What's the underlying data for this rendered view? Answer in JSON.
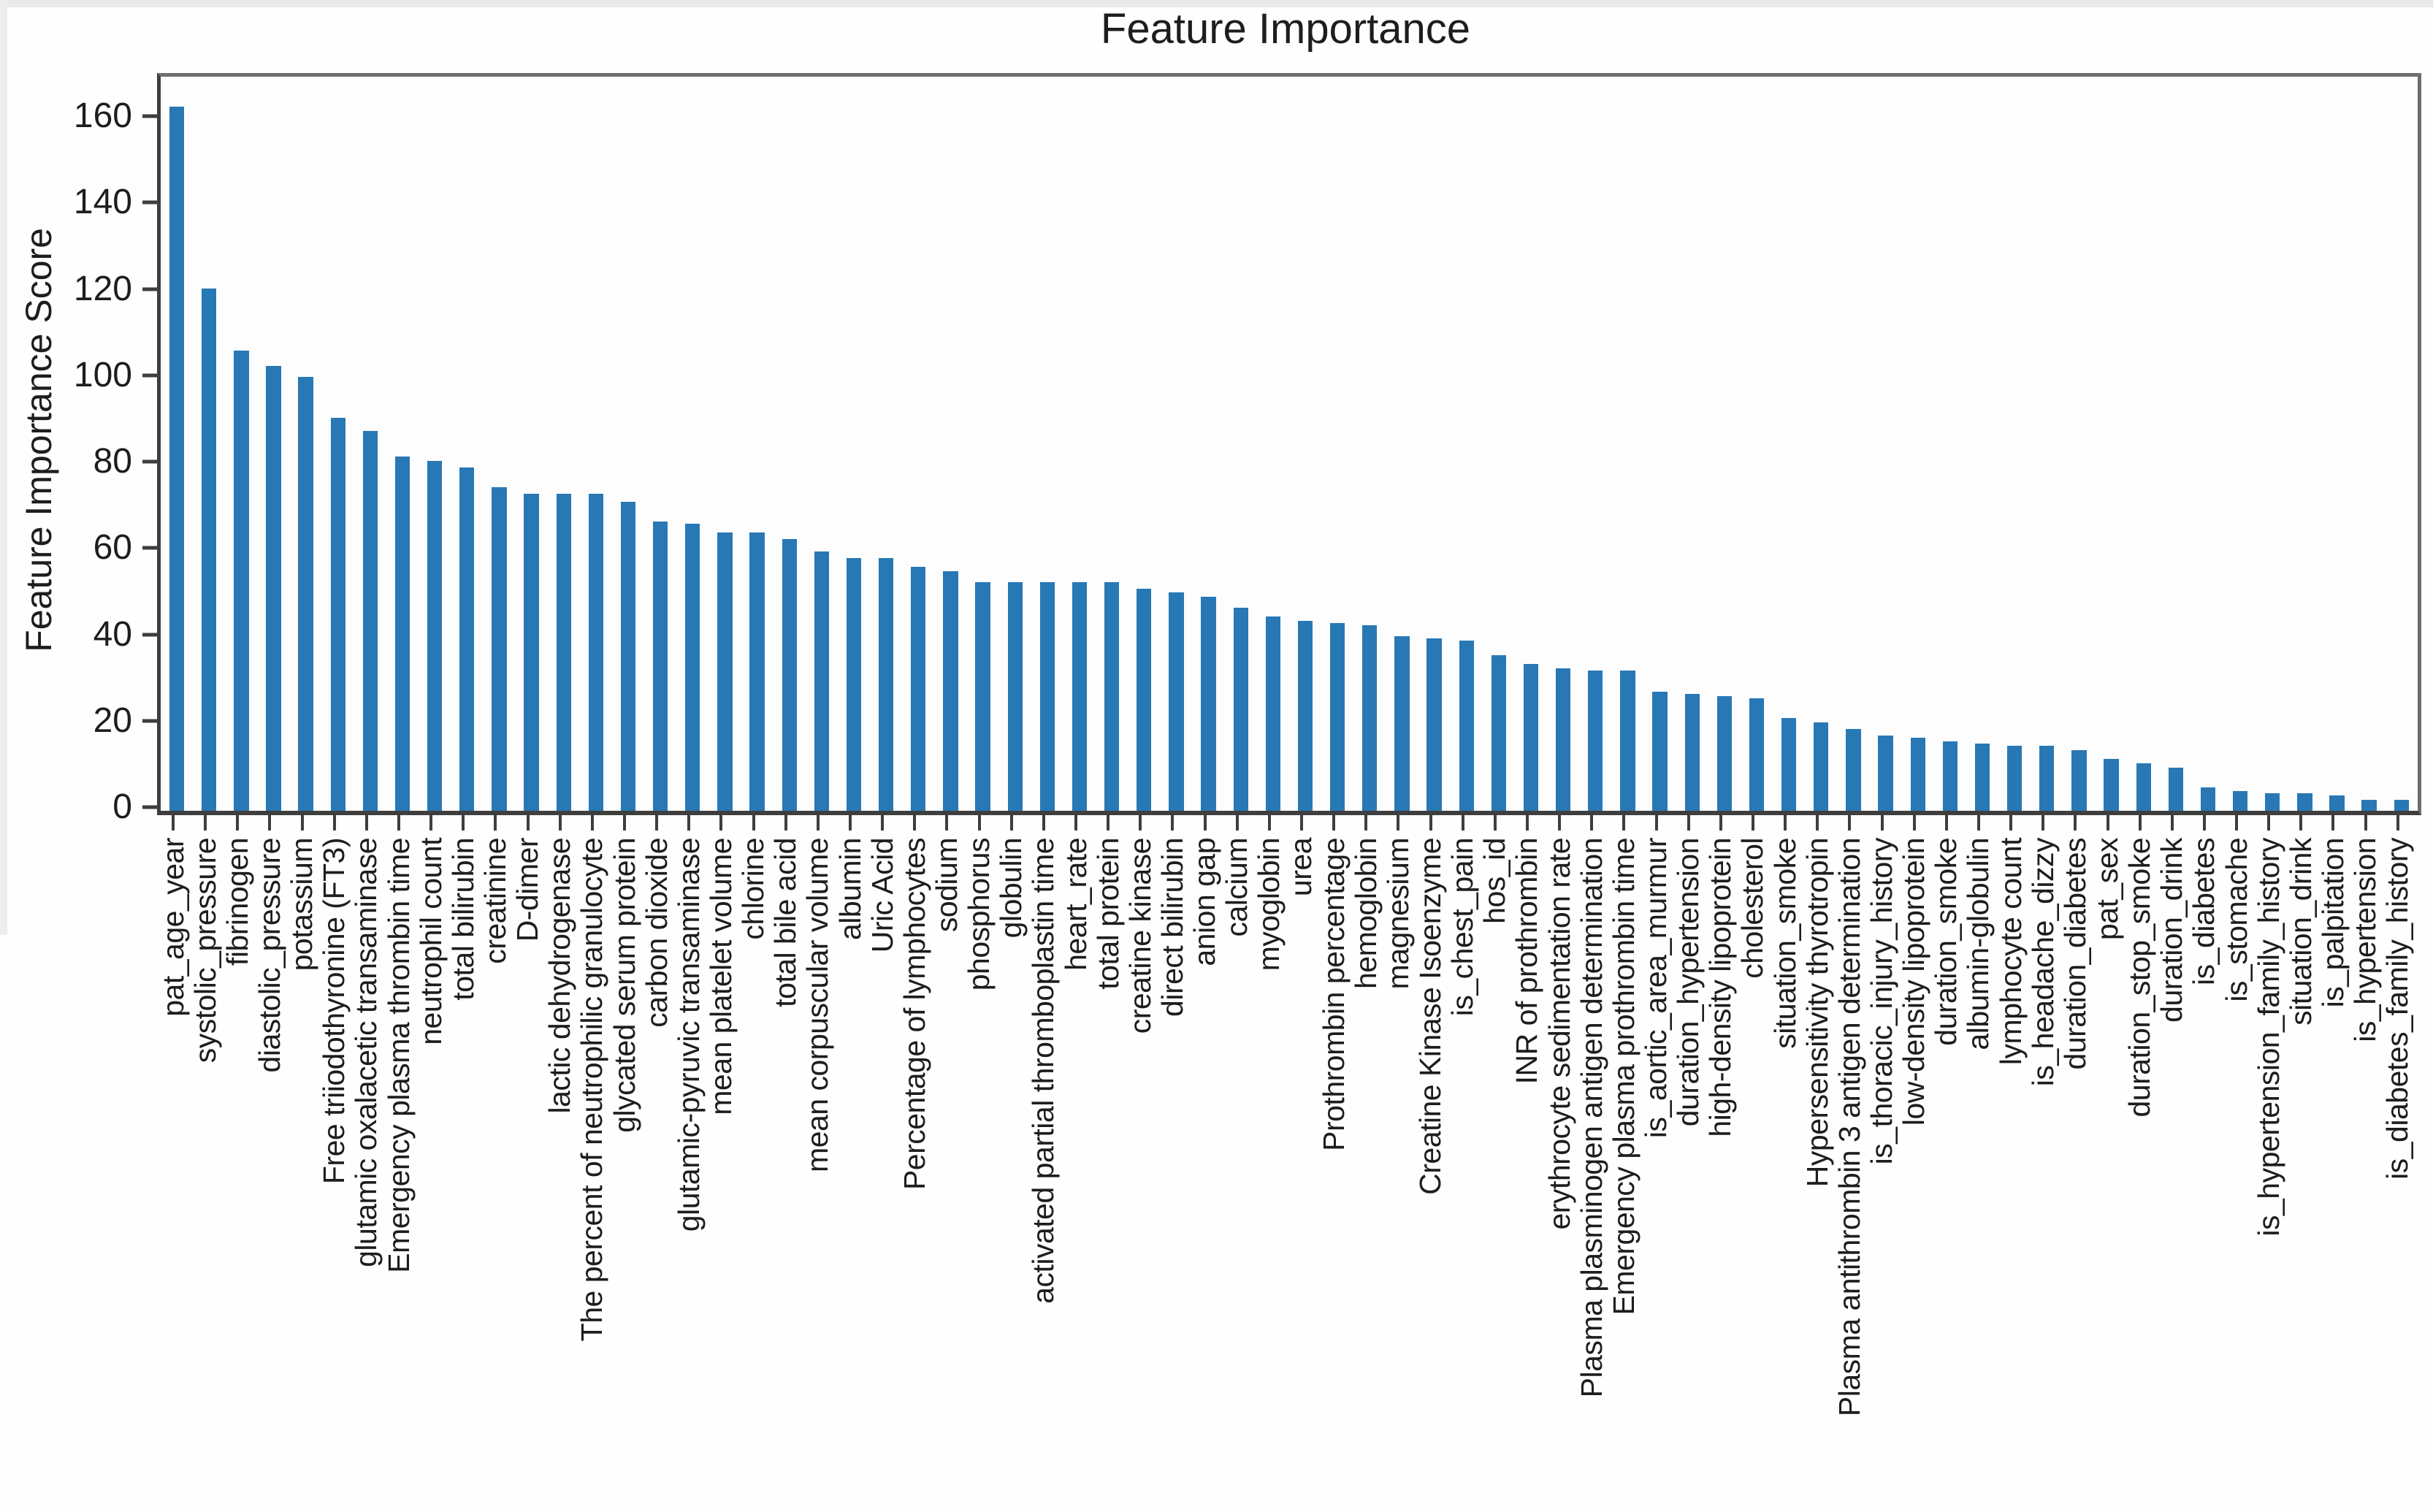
{
  "page": {
    "background": "#ffffff",
    "edge_strip_color": "#e9e9e9"
  },
  "chart_data": {
    "type": "bar",
    "title": "Feature Importance",
    "xlabel": "",
    "ylabel": "Feature Importance Score",
    "bar_color": "#2878b5",
    "axis_color": "#3e3e3e",
    "text_color": "#1d1d1d",
    "grid": false,
    "legend_position": "none",
    "ylim": [
      0,
      170
    ],
    "yticks": [
      0,
      20,
      40,
      60,
      80,
      100,
      120,
      140,
      160
    ],
    "categories": [
      "pat_age_year",
      "systolic_pressure",
      "fibrinogen",
      "diastolic_pressure",
      "potassium",
      "Free triiodothyronine (FT3)",
      "glutamic oxalacetic transaminase",
      "Emergency plasma thrombin time",
      "neutrophil count",
      "total bilirubin",
      "creatinine",
      "D-dimer",
      "lactic dehydrogenase",
      "The percent of neutrophilic granulocyte",
      "glycated serum protein",
      "carbon dioxide",
      "glutamic-pyruvic transaminase",
      "mean platelet volume",
      "chlorine",
      "total bile acid",
      "mean corpuscular volume",
      "albumin",
      "Uric Acid",
      "Percentage of lymphocytes",
      "sodium",
      "phosphorus",
      "globulin",
      "activated partial thromboplastin time",
      "heart_rate",
      "total protein",
      "creatine kinase",
      "direct bilirubin",
      "anion gap",
      "calcium",
      "myoglobin",
      "urea",
      "Prothrombin percentage",
      "hemoglobin",
      "magnesium",
      "Creatine Kinase Isoenzyme",
      "is_chest_pain",
      "hos_id",
      "INR of prothrombin",
      "erythrocyte sedimentation rate",
      "Plasma plasminogen antigen determination",
      "Emergency plasma prothrombin time",
      "is_aortic_area_murmur",
      "duration_hypertension",
      "high-density lipoprotein",
      "cholesterol",
      "situation_smoke",
      "Hypersensitivity thyrotropin",
      "Plasma antithrombin 3 antigen determination",
      "is_thoracic_injury_history",
      "low-density lipoprotein",
      "duration_smoke",
      "albumin-globulin",
      "lymphocyte count",
      "is_headache_dizzy",
      "duration_diabetes",
      "pat_sex",
      "duration_stop_smoke",
      "duration_drink",
      "is_diabetes",
      "is_stomache",
      "is_hypertension_family_history",
      "situation_drink",
      "is_palpitation",
      "is_hypertension",
      "is_diabetes_family_history"
    ],
    "values": [
      163,
      121,
      106.5,
      103,
      100.5,
      91,
      88,
      82,
      81,
      79.5,
      75,
      73.5,
      73.5,
      73.5,
      71.5,
      67,
      66.5,
      64.5,
      64.5,
      63,
      60,
      58.5,
      58.5,
      56.5,
      55.5,
      53,
      53,
      53,
      53,
      53,
      51.5,
      50.5,
      49.5,
      47,
      45,
      44,
      43.5,
      43,
      40.5,
      40,
      39.5,
      36,
      34,
      33,
      32.5,
      32.5,
      27.5,
      27,
      26.5,
      26,
      21.5,
      20.5,
      19,
      17.5,
      17,
      16,
      15.5,
      15,
      15,
      14,
      12,
      11,
      10,
      5.5,
      4.5,
      4,
      4,
      3.5,
      2.5,
      2.5
    ]
  }
}
